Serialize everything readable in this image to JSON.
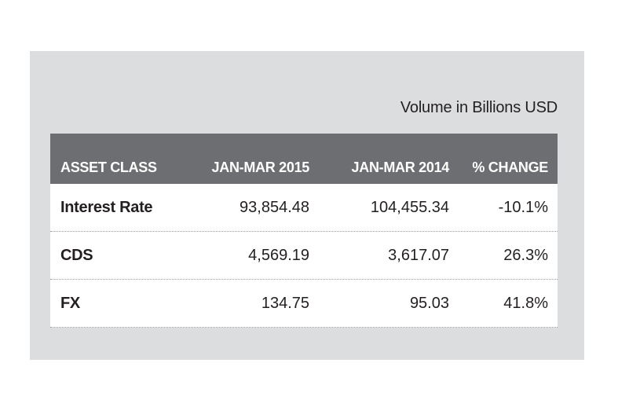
{
  "chart_data": {
    "type": "table",
    "caption": "Volume in Billions USD",
    "columns": [
      "ASSET CLASS",
      "JAN-MAR 2015",
      "JAN-MAR 2014",
      "% CHANGE"
    ],
    "rows": [
      {
        "asset_class": "Interest Rate",
        "jan_mar_2015": "93,854.48",
        "jan_mar_2014": "104,455.34",
        "pct_change": "-10.1%"
      },
      {
        "asset_class": "CDS",
        "jan_mar_2015": "4,569.19",
        "jan_mar_2014": "3,617.07",
        "pct_change": "26.3%"
      },
      {
        "asset_class": "FX",
        "jan_mar_2015": "134.75",
        "jan_mar_2014": "95.03",
        "pct_change": "41.8%"
      }
    ]
  },
  "colors": {
    "panel_background": "#dcdddf",
    "header_background": "#6d6e71",
    "header_text": "#ffffff",
    "body_text": "#231f20"
  }
}
